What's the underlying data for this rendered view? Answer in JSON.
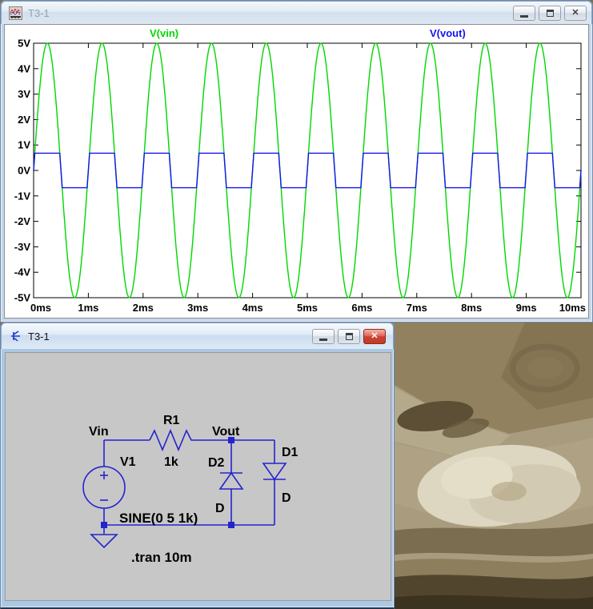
{
  "waveform_window": {
    "title": "T3-1",
    "controls": {
      "minimize": "minimize",
      "restore": "restore",
      "close": "close"
    }
  },
  "schematic_window": {
    "title": "T3-1",
    "controls": {
      "minimize": "minimize",
      "restore": "restore",
      "close": "close"
    },
    "schematic": {
      "background": "#c7c7c7",
      "wire_color": "#2323cf",
      "label_color": "#000000",
      "net_labels": {
        "vin": "Vin",
        "vout": "Vout"
      },
      "components": {
        "v1": {
          "designator": "V1",
          "value": "SINE(0 5 1k)"
        },
        "r1": {
          "designator": "R1",
          "value": "1k"
        },
        "d2": {
          "designator": "D2",
          "model": "D"
        },
        "d1": {
          "designator": "D1",
          "model": "D"
        }
      },
      "directive": ".tran 10m"
    }
  },
  "chart_data": {
    "type": "line",
    "title": "",
    "grid": false,
    "legend_position": "top",
    "x_axis": {
      "min": 0,
      "max": 10,
      "unit": "ms",
      "tick_step": 1,
      "tick_labels": [
        "0ms",
        "1ms",
        "2ms",
        "3ms",
        "4ms",
        "5ms",
        "6ms",
        "7ms",
        "8ms",
        "9ms",
        "10ms"
      ]
    },
    "y_axis": {
      "min": -5,
      "max": 5,
      "unit": "V",
      "tick_step": 1,
      "tick_labels": [
        "5V",
        "4V",
        "3V",
        "2V",
        "1V",
        "0V",
        "-1V",
        "-2V",
        "-3V",
        "-4V",
        "-5V"
      ]
    },
    "series": [
      {
        "name": "V(vin)",
        "color": "#00d800",
        "waveform": "sine",
        "amplitude_v": 5,
        "offset_v": 0,
        "cycles": 10,
        "frequency_hz": 1000
      },
      {
        "name": "V(vout)",
        "color": "#1414f0",
        "waveform": "clipped_sine",
        "amplitude_v": 5,
        "offset_v": 0,
        "clip_v": 0.68,
        "cycles": 10,
        "frequency_hz": 1000
      }
    ]
  },
  "photo_palette": {
    "base": "#a99b7d",
    "dark_band": "#91815f",
    "light_patch": "#ddd6c0",
    "dark_blob": "#5c4f35",
    "bottom_band": "#6b5d41",
    "bottom_dark": "#453a27"
  }
}
